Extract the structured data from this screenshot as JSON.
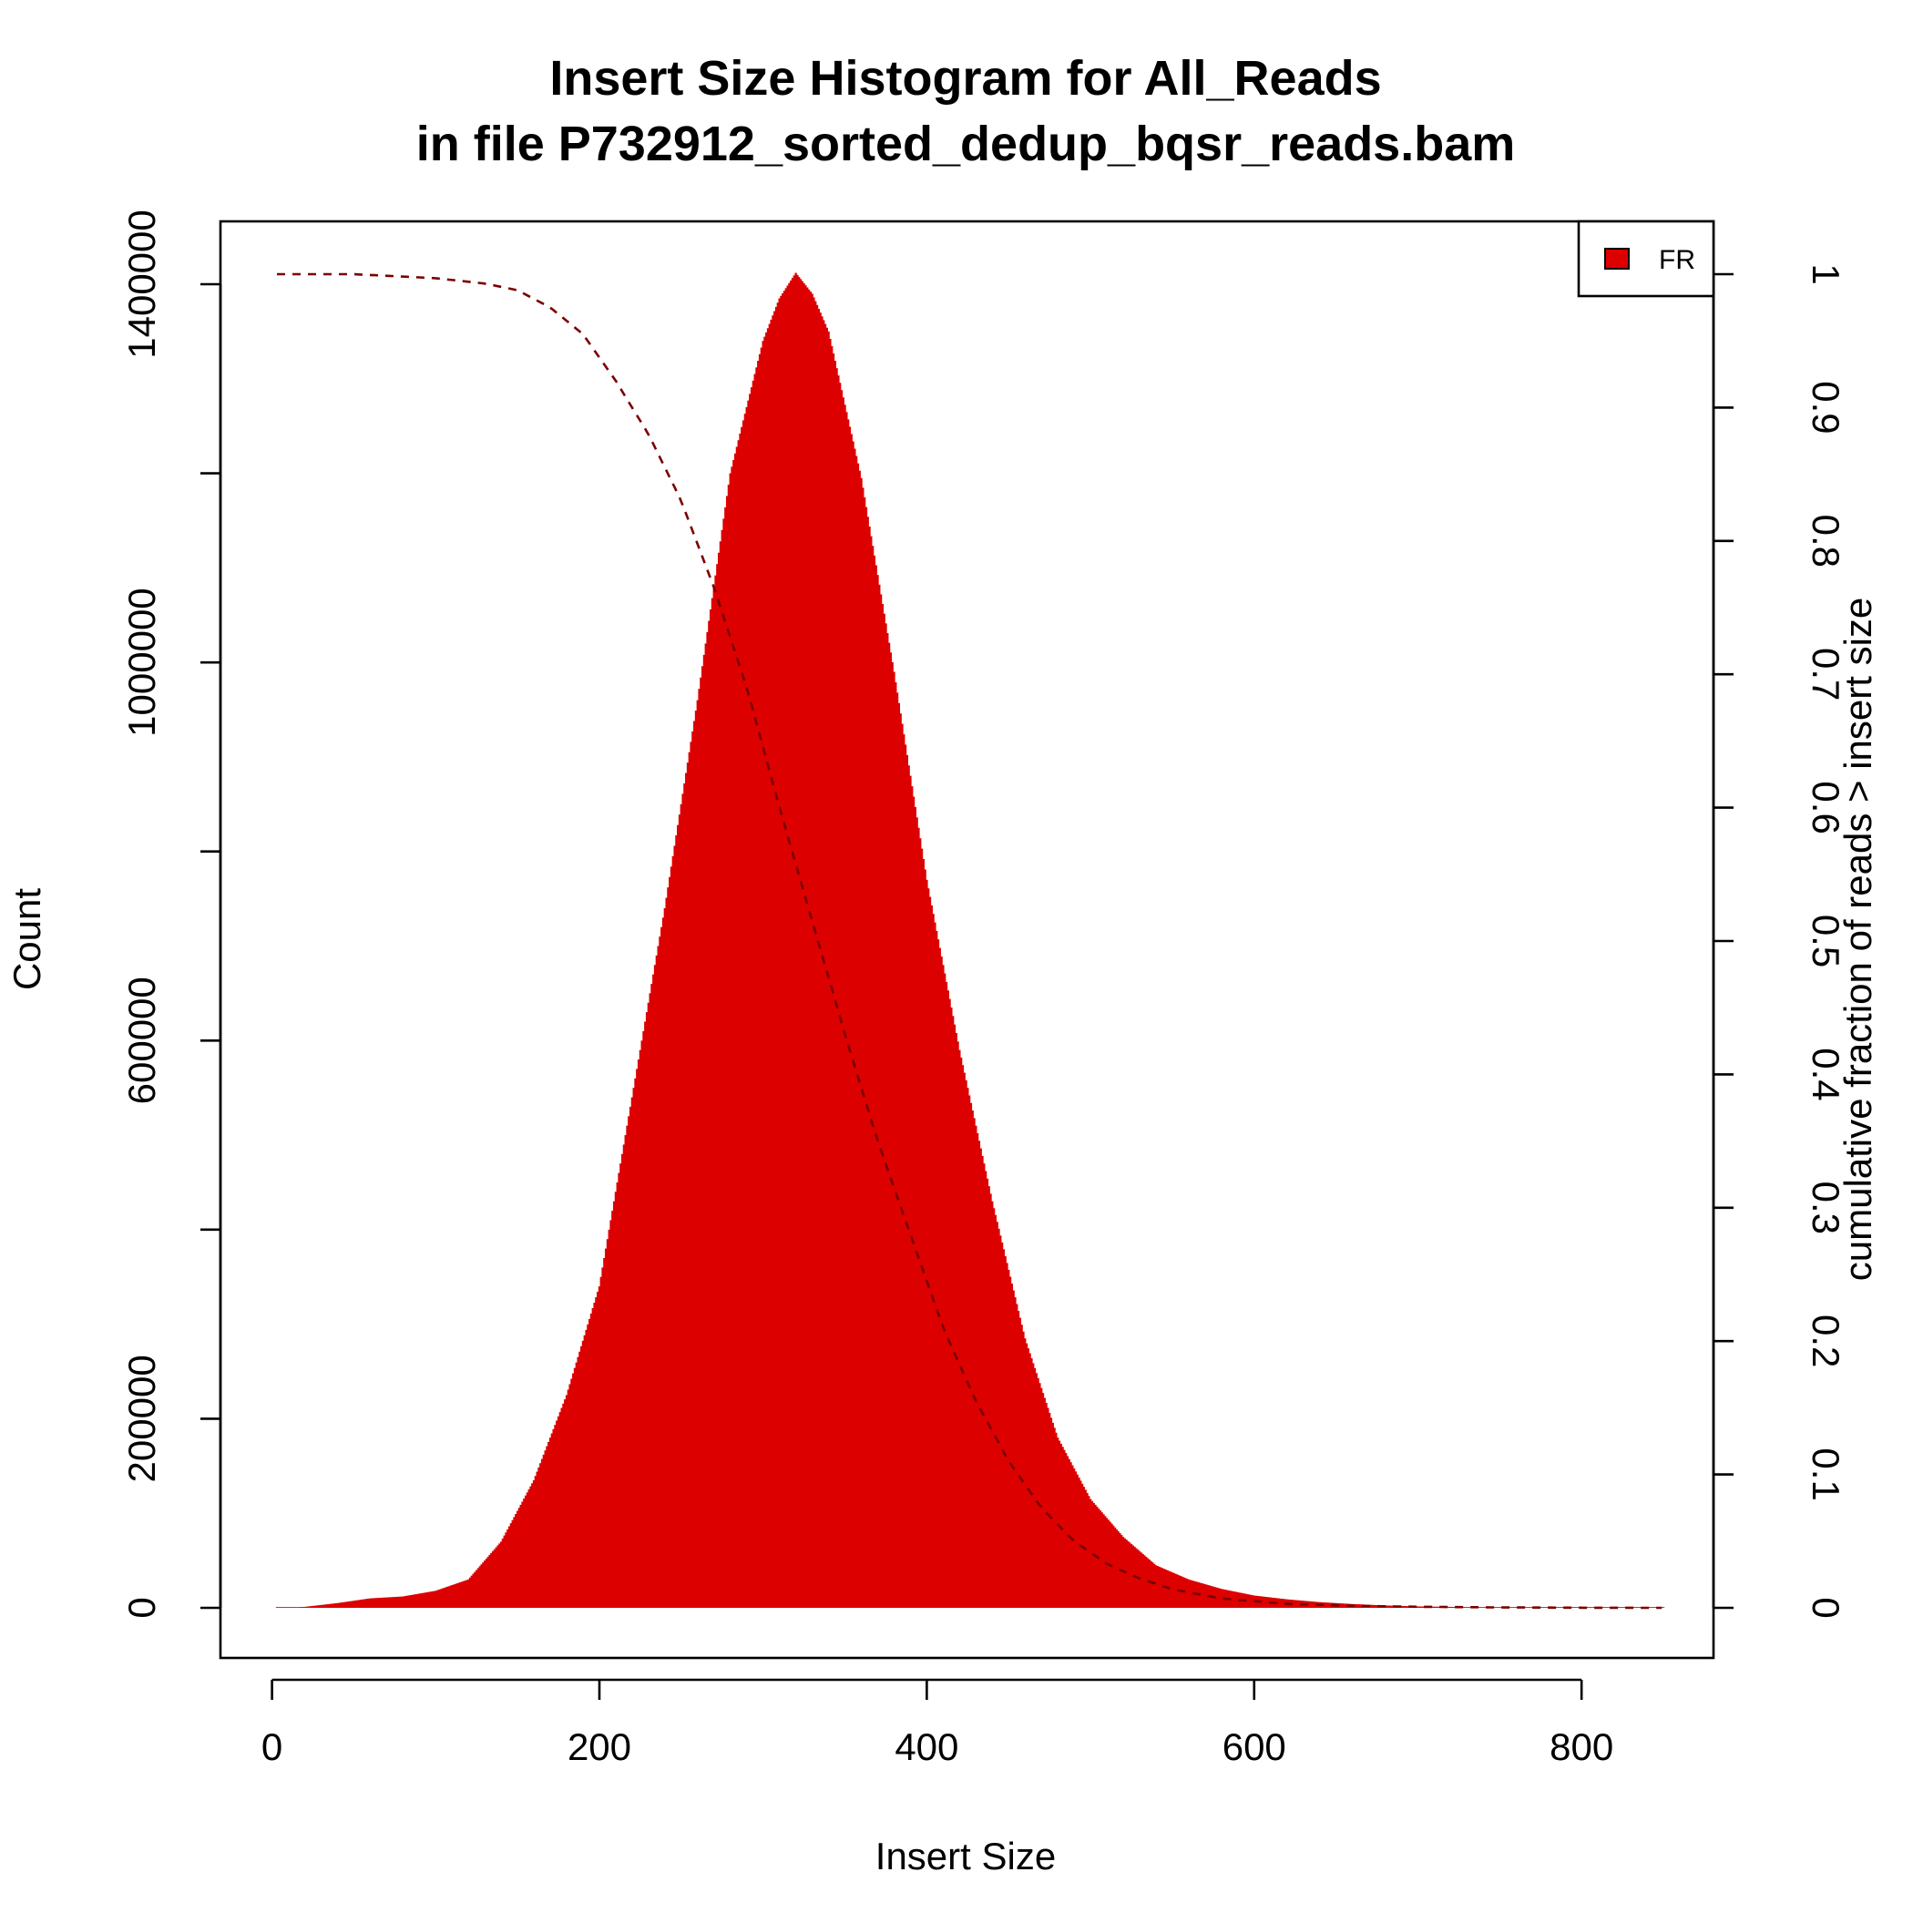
{
  "chart_data": {
    "type": "area",
    "title": "Insert Size Histogram for All_Reads",
    "subtitle": "in file P732912_sorted_dedup_bqsr_reads.bam",
    "xlabel": "Insert Size",
    "ylabel": "Count",
    "y2label": "cumulative fraction of reads > insert size",
    "xlim": [
      0,
      850
    ],
    "ylim": [
      0,
      1400000
    ],
    "y2lim": [
      0,
      1
    ],
    "x_ticks": [
      0,
      200,
      400,
      600,
      800
    ],
    "y_ticks": [
      0,
      200000,
      400000,
      600000,
      800000,
      1000000,
      1200000,
      1400000
    ],
    "y_tick_labels": [
      "0",
      "200000",
      "",
      "600000",
      "",
      "1000000",
      "",
      "1400000"
    ],
    "y2_ticks": [
      0,
      0.1,
      0.2,
      0.3,
      0.4,
      0.5,
      0.6,
      0.7,
      0.8,
      0.9,
      1
    ],
    "y2_tick_labels": [
      "0",
      "0.1",
      "0.2",
      "0.3",
      "0.4",
      "0.5",
      "0.6",
      "0.7",
      "0.8",
      "0.9",
      "1"
    ],
    "legend": {
      "position": "top-right",
      "entries": [
        {
          "name": "FR",
          "color": "#dd0000"
        }
      ]
    },
    "grid": false,
    "series": [
      {
        "name": "FR",
        "kind": "histogram",
        "color": "#dd0000",
        "x": [
          3,
          20,
          40,
          60,
          80,
          100,
          120,
          140,
          160,
          180,
          200,
          220,
          240,
          260,
          280,
          300,
          310,
          320,
          330,
          340,
          360,
          380,
          400,
          420,
          440,
          460,
          480,
          500,
          520,
          540,
          560,
          580,
          600,
          620,
          640,
          660,
          680,
          700,
          720,
          740,
          760,
          780,
          800,
          820,
          850
        ],
        "values": [
          0,
          1000,
          5000,
          10000,
          12000,
          18000,
          30000,
          70000,
          135000,
          225000,
          340000,
          540000,
          740000,
          960000,
          1200000,
          1340000,
          1385000,
          1412000,
          1390000,
          1350000,
          1195000,
          990000,
          770000,
          590000,
          430000,
          285000,
          180000,
          115000,
          75000,
          45000,
          30000,
          20000,
          13000,
          9000,
          6000,
          4000,
          2500,
          1500,
          1000,
          600,
          300,
          200,
          100,
          50,
          0
        ]
      },
      {
        "name": "cumulative fraction of reads > insert size",
        "kind": "line",
        "style": "dashed",
        "color": "#7a0000",
        "x": [
          3,
          50,
          100,
          130,
          150,
          170,
          190,
          210,
          230,
          250,
          270,
          290,
          310,
          330,
          350,
          370,
          390,
          410,
          430,
          450,
          470,
          490,
          510,
          530,
          550,
          580,
          620,
          660,
          700,
          750,
          800,
          850
        ],
        "values": [
          1.0,
          1.0,
          0.997,
          0.993,
          0.988,
          0.975,
          0.955,
          0.92,
          0.88,
          0.83,
          0.765,
          0.69,
          0.6,
          0.515,
          0.43,
          0.35,
          0.28,
          0.21,
          0.155,
          0.11,
          0.075,
          0.05,
          0.033,
          0.022,
          0.014,
          0.007,
          0.003,
          0.0015,
          0.0008,
          0.0003,
          0.0001,
          0
        ]
      }
    ]
  }
}
